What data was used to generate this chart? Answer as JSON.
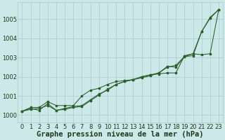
{
  "title": "Graphe pression niveau de la mer (hPa)",
  "x": [
    0,
    1,
    2,
    3,
    4,
    5,
    6,
    7,
    8,
    9,
    10,
    11,
    12,
    13,
    14,
    15,
    16,
    17,
    18,
    19,
    20,
    21,
    22,
    23
  ],
  "line1": [
    1000.2,
    1000.4,
    1000.4,
    1000.7,
    1000.5,
    1000.5,
    1000.5,
    1001.0,
    1001.3,
    1001.4,
    1001.6,
    1001.75,
    1001.8,
    1001.85,
    1002.0,
    1002.1,
    1002.15,
    1002.2,
    1002.2,
    1003.1,
    1003.2,
    1003.15,
    1003.2,
    1005.5
  ],
  "line2": [
    1000.2,
    1000.3,
    1000.35,
    1000.5,
    1000.25,
    1000.35,
    1000.45,
    1000.5,
    1000.8,
    1001.1,
    1001.3,
    1001.6,
    1001.75,
    1001.85,
    1002.0,
    1002.1,
    1002.2,
    1002.5,
    1002.6,
    1003.05,
    1003.1,
    1004.35,
    1005.1,
    1005.5
  ],
  "line3": [
    1000.2,
    1000.35,
    1000.25,
    1000.6,
    1000.25,
    1000.3,
    1000.4,
    1000.45,
    1000.75,
    1001.05,
    1001.35,
    1001.6,
    1001.75,
    1001.85,
    1001.95,
    1002.05,
    1002.2,
    1002.55,
    1002.5,
    1003.05,
    1003.2,
    1004.35,
    1005.05,
    1005.5
  ],
  "ylim": [
    999.6,
    1005.9
  ],
  "yticks": [
    1000,
    1001,
    1002,
    1003,
    1004,
    1005
  ],
  "line_color": "#2a5e2a",
  "bg_color": "#cce8e8",
  "grid_color": "#aacccc",
  "label_color": "#1a3a1a",
  "title_fontsize": 7.5,
  "tick_fontsize": 6.0
}
